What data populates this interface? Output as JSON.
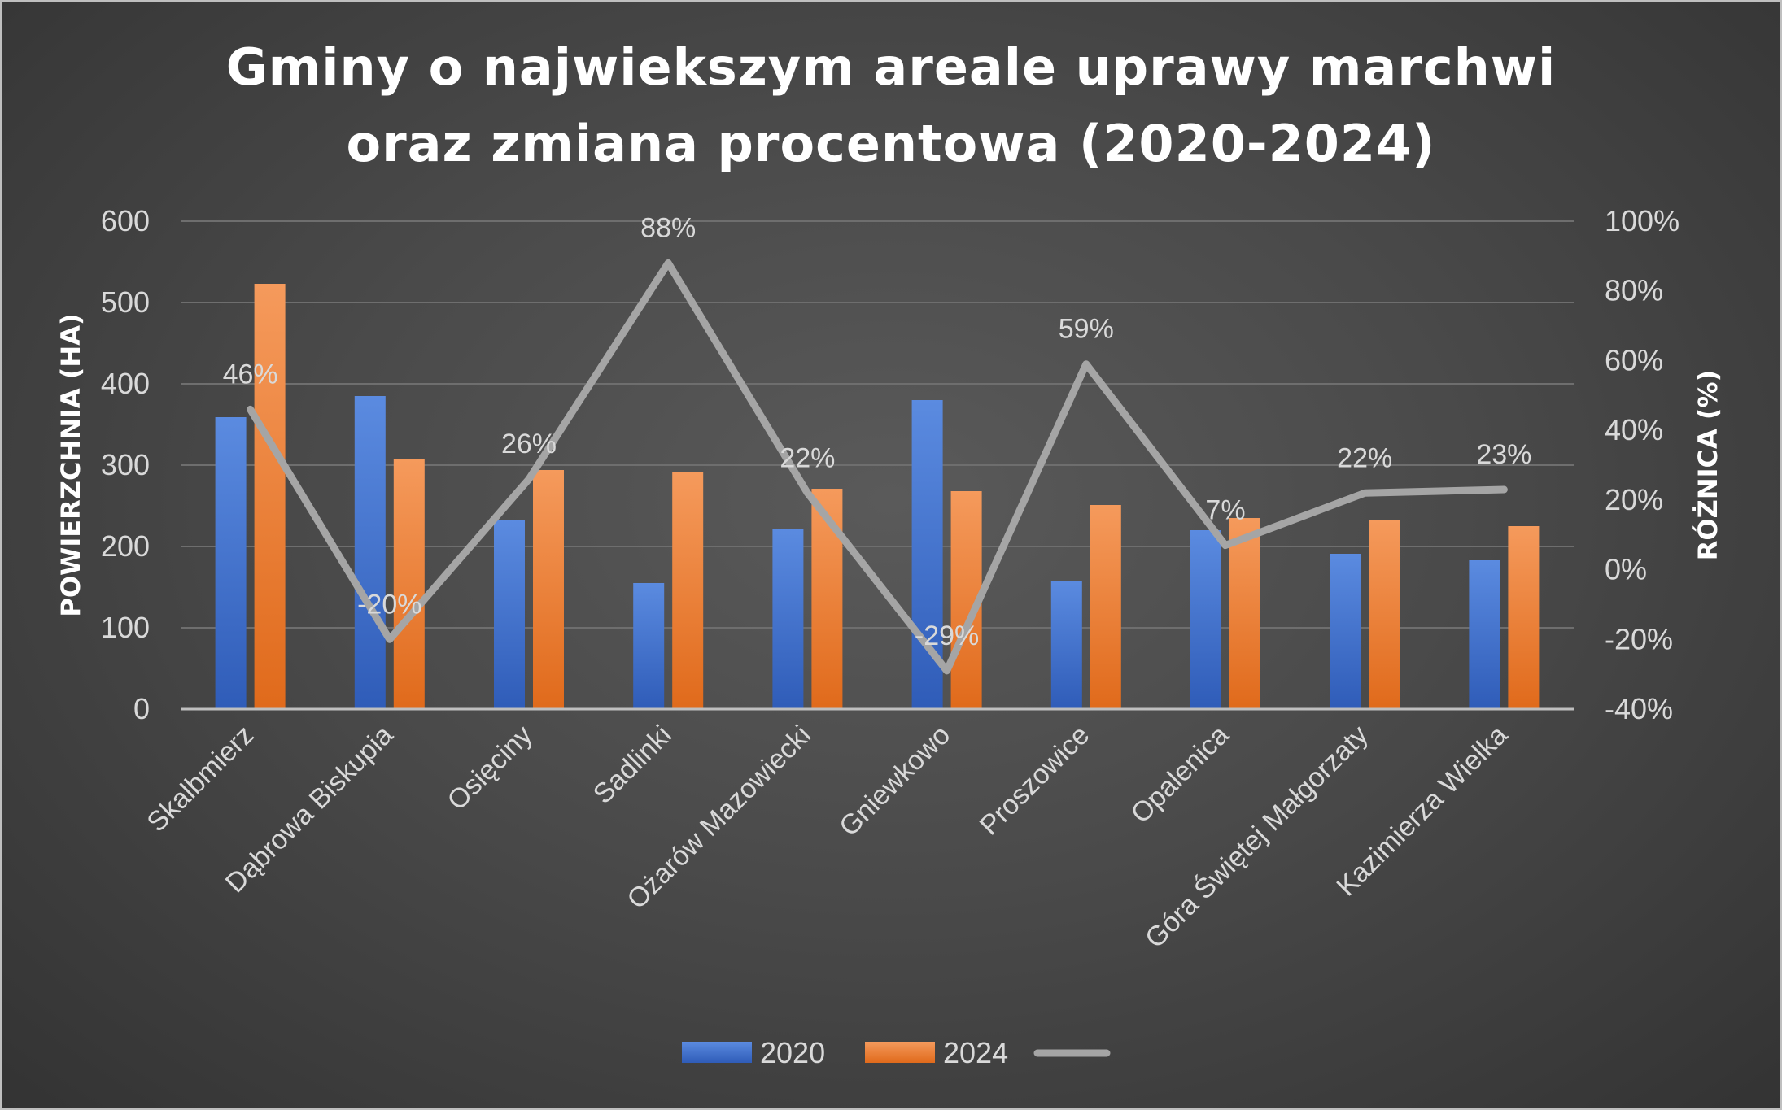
{
  "chart_data": {
    "type": "bar",
    "title_lines": [
      "Gminy o najwiekszym areale uprawy marchwi",
      "oraz zmiana procentowa (2020-2024)"
    ],
    "categories": [
      "Skalbmierz",
      "Dąbrowa Biskupia",
      "Osięciny",
      "Sadlinki",
      "Ożarów Mazowiecki",
      "Gniewkowo",
      "Proszowice",
      "Opalenica",
      "Góra Świętej Małgorzaty",
      "Kazimierza Wielka"
    ],
    "series": [
      {
        "name": "2020",
        "type": "bar",
        "axis": "left",
        "color": "#4472c4",
        "values": [
          359,
          385,
          232,
          155,
          222,
          380,
          158,
          220,
          191,
          183
        ]
      },
      {
        "name": "2024",
        "type": "bar",
        "axis": "left",
        "color": "#ed7d31",
        "values": [
          523,
          308,
          294,
          291,
          271,
          268,
          251,
          235,
          232,
          225
        ]
      },
      {
        "name": "",
        "type": "line",
        "axis": "right",
        "color": "#a5a5a5",
        "values": [
          46,
          -20,
          26,
          88,
          22,
          -29,
          59,
          7,
          22,
          23
        ],
        "labels": [
          "46%",
          "-20%",
          "26%",
          "88%",
          "22%",
          "-29%",
          "59%",
          "7%",
          "22%",
          "23%"
        ]
      }
    ],
    "ylabel": "POWIERZCHNIA (HA)",
    "y2label": "RÓŻNICA (%)",
    "ylim": [
      0,
      600
    ],
    "y2lim": [
      -40,
      100
    ],
    "yticks": [
      "0",
      "100",
      "200",
      "300",
      "400",
      "500",
      "600"
    ],
    "y2ticks": [
      "-40%",
      "-20%",
      "0%",
      "20%",
      "40%",
      "60%",
      "80%",
      "100%"
    ],
    "grid": true,
    "legend_position": "bottom"
  }
}
